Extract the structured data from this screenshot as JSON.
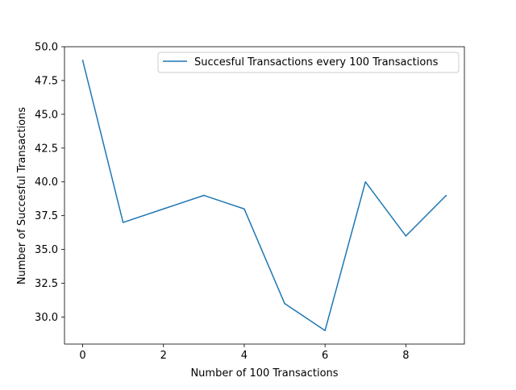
{
  "chart_data": {
    "type": "line",
    "title": "",
    "xlabel": "Number of 100 Transactions",
    "ylabel": "Number of Succesful Transactions",
    "xlim": [
      -0.45,
      9.45
    ],
    "ylim": [
      28.0,
      50.0
    ],
    "xticks": [
      0,
      2,
      4,
      6,
      8
    ],
    "xtick_labels": [
      "0",
      "2",
      "4",
      "6",
      "8"
    ],
    "yticks": [
      30.0,
      32.5,
      35.0,
      37.5,
      40.0,
      42.5,
      45.0,
      47.5,
      50.0
    ],
    "ytick_labels": [
      "30.0",
      "32.5",
      "35.0",
      "37.5",
      "40.0",
      "42.5",
      "45.0",
      "47.5",
      "50.0"
    ],
    "grid": false,
    "legend_position": "top-right",
    "series": [
      {
        "name": "Succesful Transactions every 100 Transactions",
        "color": "#1f77b4",
        "x": [
          0,
          1,
          2,
          3,
          4,
          5,
          6,
          7,
          8,
          9
        ],
        "y": [
          49,
          37,
          38,
          39,
          38,
          31,
          29,
          40,
          36,
          39
        ]
      }
    ]
  }
}
